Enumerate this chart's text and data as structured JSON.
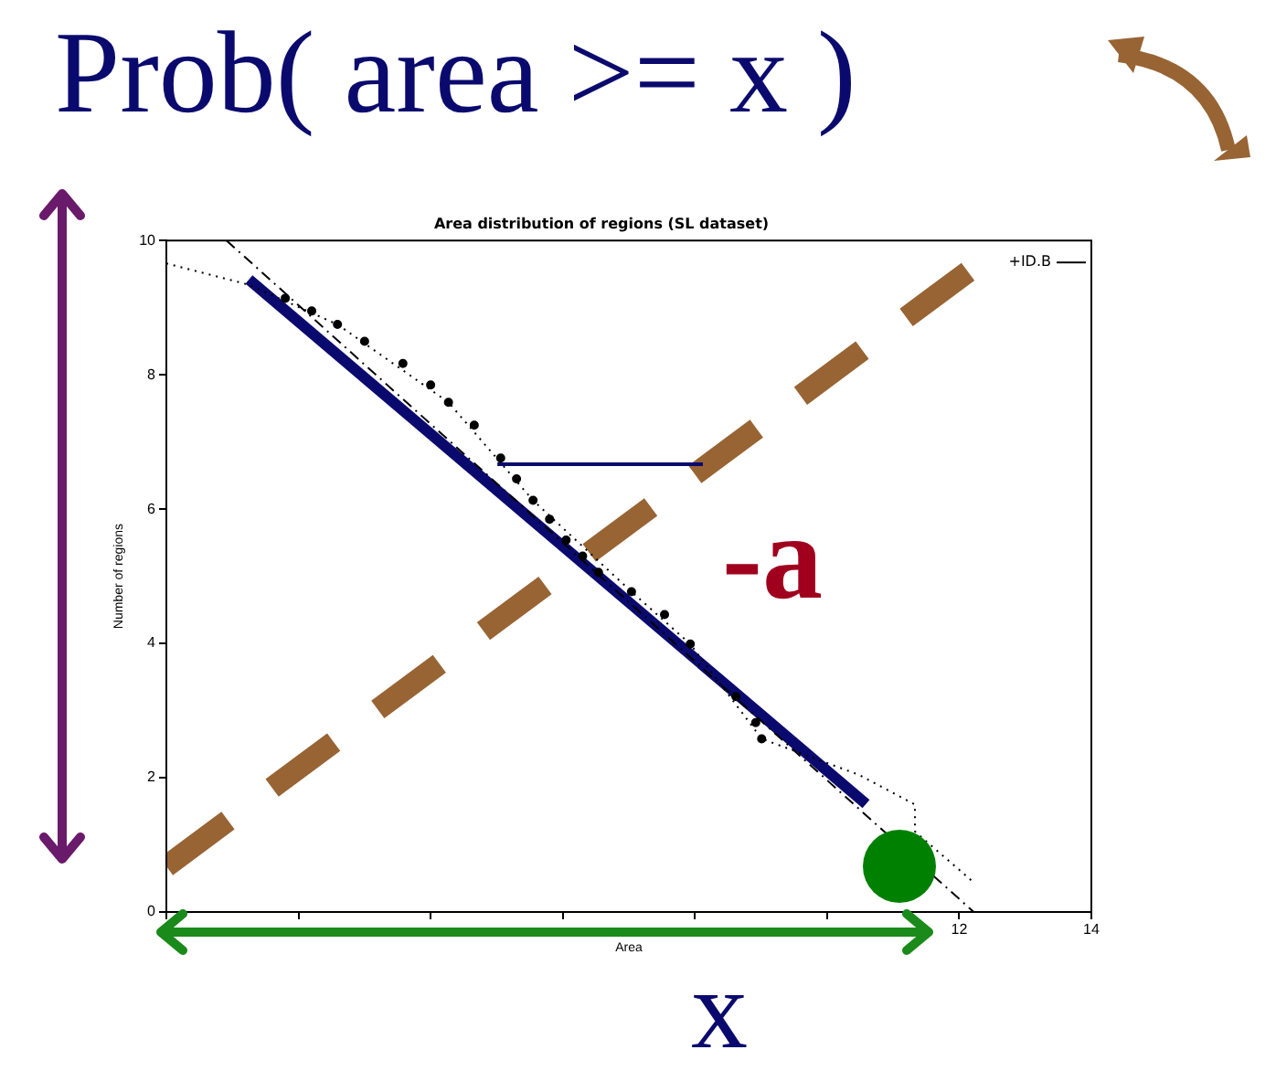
{
  "chart_data": {
    "type": "scatter",
    "title": "Area distribution of regions (SL dataset)",
    "xlabel": "Area",
    "ylabel": "Number of regions",
    "annotations": [
      "Prob( area >= x )",
      "-a",
      "x"
    ],
    "xlim": [
      0,
      14
    ],
    "ylim": [
      0,
      10
    ],
    "xticks": [
      {
        "value": 0,
        "label": null
      },
      {
        "value": 2,
        "label": null
      },
      {
        "value": 4,
        "label": null
      },
      {
        "value": 6,
        "label": null
      },
      {
        "value": 8,
        "label": null
      },
      {
        "value": 10,
        "label": null
      },
      12,
      14
    ],
    "yticks": [
      0,
      2,
      4,
      6,
      8,
      10
    ],
    "grid": false,
    "legend": "top right",
    "marker": "circle",
    "series": [
      {
        "color": "#000000",
        "x": [
          1.8,
          2.2,
          2.59,
          3.0,
          3.58,
          4.0,
          4.27,
          4.66,
          5.06,
          5.3,
          5.55,
          5.8,
          6.05,
          6.3,
          6.54,
          7.04,
          7.54,
          7.93,
          8.62,
          8.92,
          9.01
        ],
        "values": [
          9.14,
          8.95,
          8.75,
          8.5,
          8.17,
          7.85,
          7.59,
          7.25,
          6.76,
          6.45,
          6.13,
          5.85,
          5.54,
          5.3,
          5.06,
          4.77,
          4.43,
          3.99,
          3.21,
          2.82,
          2.58
        ]
      },
      {
        "type": "line",
        "name": "+ID.B",
        "color": "#000000",
        "line_style": "dashed",
        "marker": "none",
        "x": [
          0.91,
          12.22
        ],
        "values": [
          10,
          0
        ]
      },
      {
        "type": "line",
        "color": "#000000",
        "line_style": "dotted",
        "marker": "none",
        "x": [
          0,
          1.25,
          2.59,
          4.27,
          5.55,
          7.04,
          7.93,
          9.01,
          10.49,
          11.33,
          11.33,
          12.22
        ],
        "values": [
          9.66,
          9.34,
          8.75,
          7.59,
          6.13,
          4.77,
          3.99,
          2.58,
          2.04,
          1.6,
          1.2,
          0.44
        ]
      },
      {
        "type": "line",
        "color": "#0a0a6e",
        "marker": "none",
        "x": [
          1.25,
          10.59
        ],
        "values": [
          9.42,
          1.61
        ]
      },
      {
        "type": "line",
        "color": "#0a0a6e",
        "marker": "none",
        "x": [
          5.01,
          8.12
        ],
        "values": [
          6.67,
          6.67
        ]
      },
      {
        "type": "line",
        "color": "#986434",
        "line_style": "dashed",
        "marker": "none",
        "x": [
          0,
          12.77
        ],
        "values": [
          0.68,
          10
        ]
      }
    ]
  }
}
